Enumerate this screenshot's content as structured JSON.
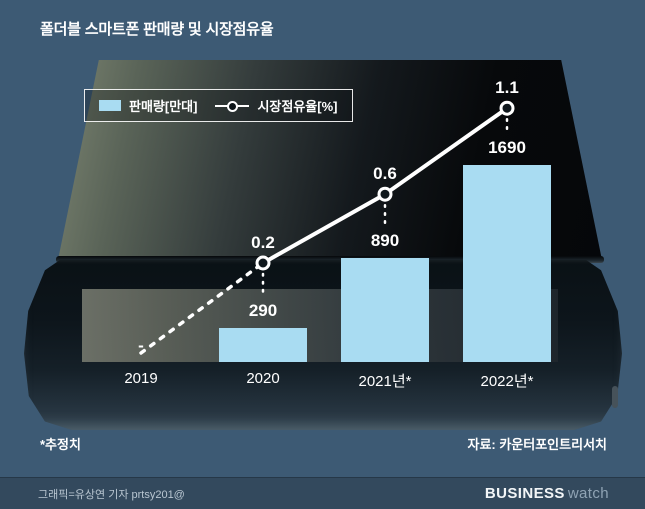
{
  "page": {
    "title": "폴더블 스마트폰 판매량 및 시장점유율",
    "footnote": "*추정치",
    "source": "자료: 카운터포인트리서치",
    "credit": "그래픽=유상연 기자 prtsy201@",
    "logo": {
      "primary": "BUSINESS",
      "secondary": "watch"
    }
  },
  "legend": {
    "bar": "판매량[만대]",
    "line": "시장점유율[%]"
  },
  "colors": {
    "background": "#3d5a74",
    "bar": "#a9dcf2",
    "line": "#ffffff"
  },
  "chart_data": {
    "type": "bar",
    "title": "폴더블 스마트폰 판매량 및 시장점유율",
    "categories": [
      "2019",
      "2020",
      "2021년*",
      "2022년*"
    ],
    "series": [
      {
        "name": "판매량[만대]",
        "type": "bar",
        "unit": "만대",
        "values": [
          null,
          290,
          890,
          1690
        ],
        "labels": [
          "-",
          "290",
          "890",
          "1690"
        ]
      },
      {
        "name": "시장점유율[%]",
        "type": "line",
        "unit": "%",
        "values": [
          null,
          0.2,
          0.6,
          1.1
        ],
        "labels": [
          "",
          "0.2",
          "0.6",
          "1.1"
        ],
        "style_note": "dashed segment from 2019 to 2020, solid afterwards, circle markers"
      }
    ],
    "legend_position": "top-left",
    "grid": false,
    "ylim_bar": [
      0,
      1750
    ],
    "ylim_line": [
      0,
      1.2
    ]
  }
}
